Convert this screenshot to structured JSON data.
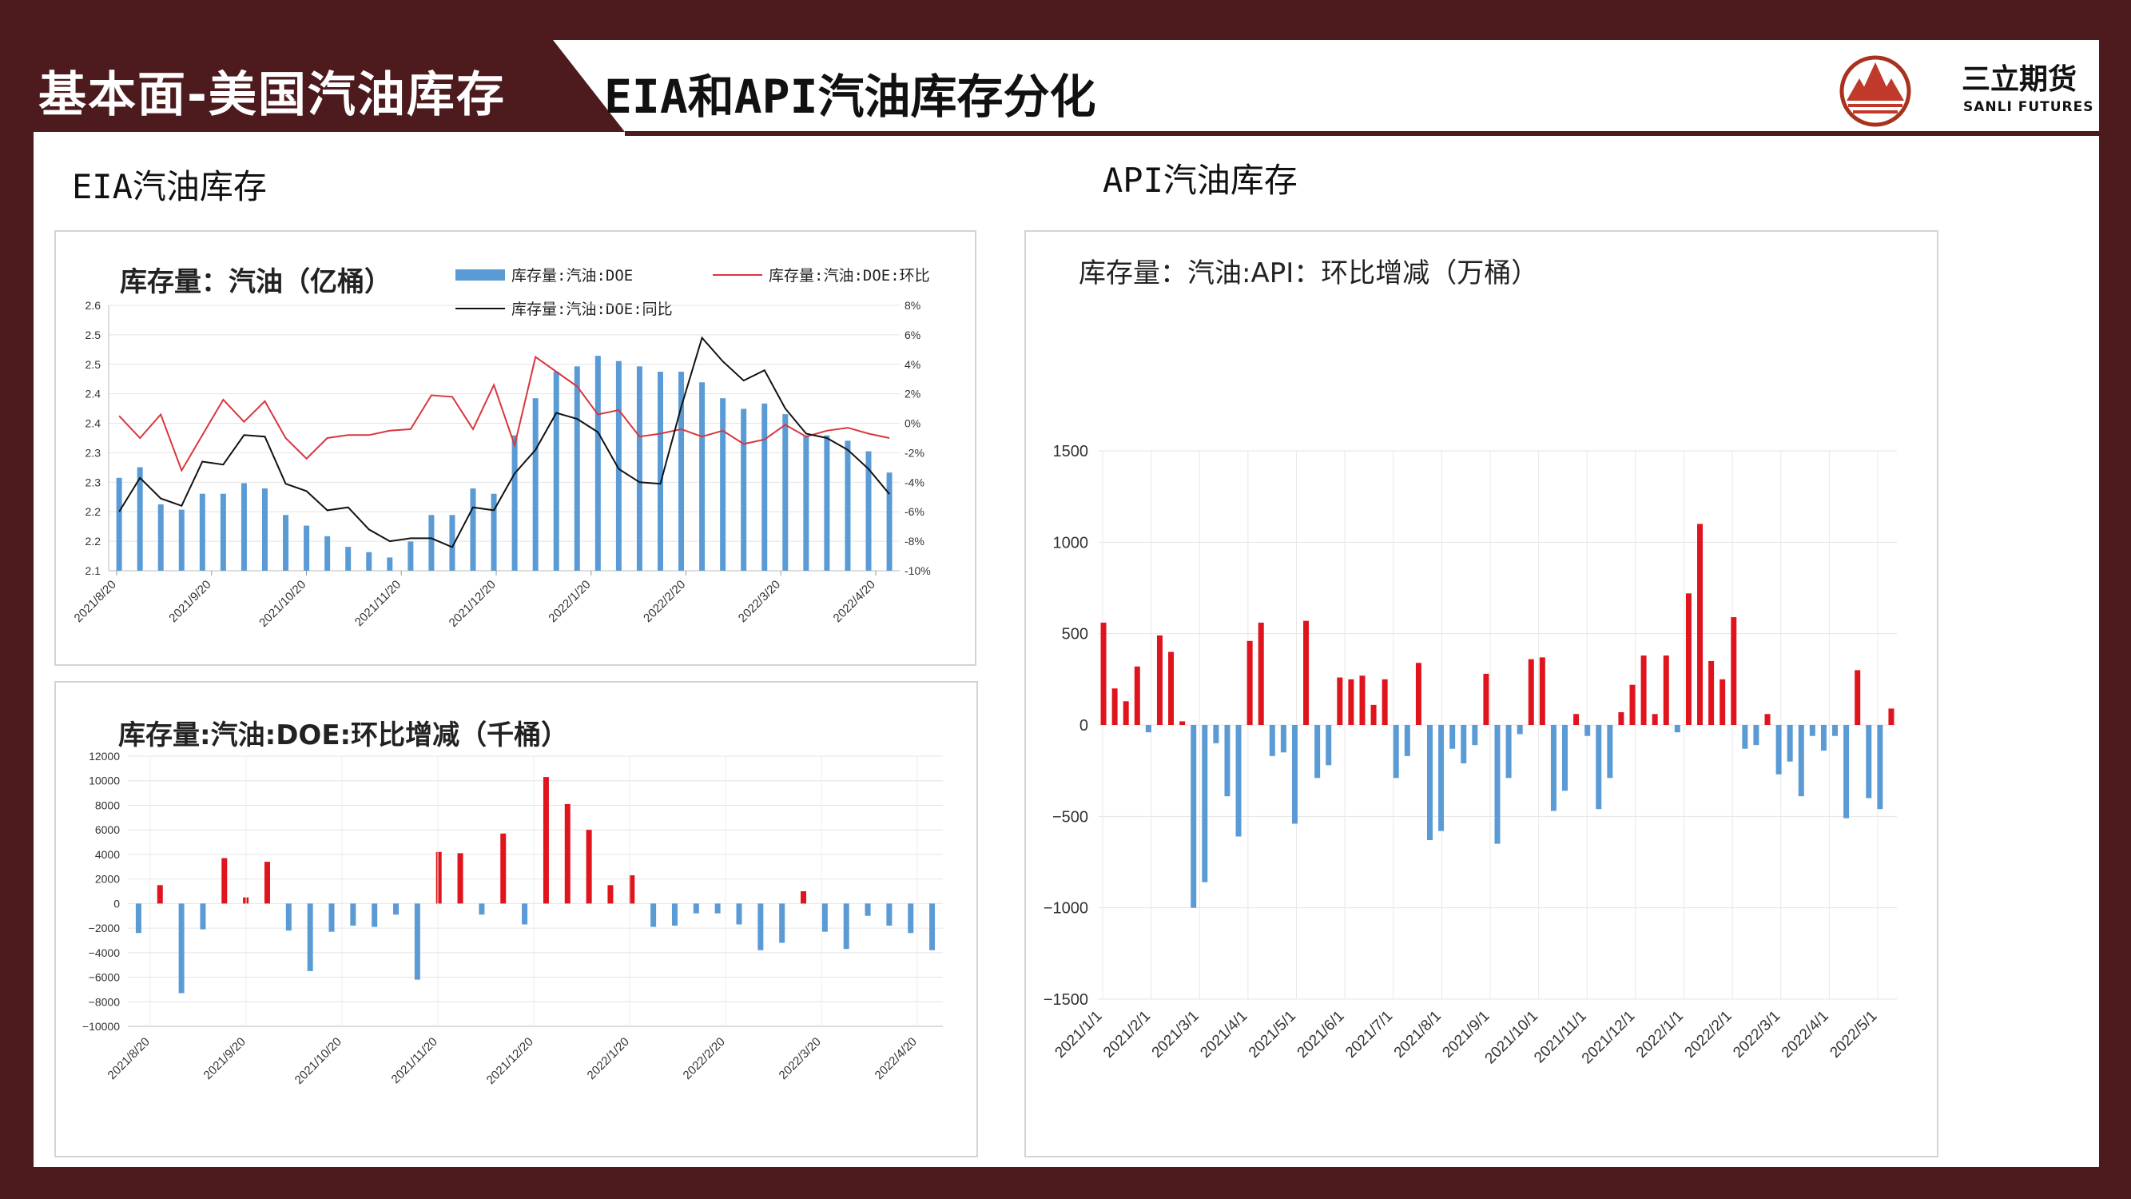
{
  "header": {
    "section": "基本面-美国汽油库存",
    "title": "EIA和API汽油库存分化",
    "logo_cn": "三立期货",
    "logo_en": "SANLI FUTURES"
  },
  "sections": {
    "eia_title": "EIA汽油库存",
    "api_title": "API汽油库存"
  },
  "colors": {
    "brand": "#4d1a1d",
    "bar_blue": "#5b9bd5",
    "bar_red": "#e0141c",
    "line_red": "#d9363e",
    "line_black": "#111111"
  },
  "chart_data": [
    {
      "id": "eia_stock",
      "type": "bar",
      "title": "库存量：汽油（亿桶）",
      "x_ticks": [
        "2021/8/20",
        "2021/9/20",
        "2021/10/20",
        "2021/11/20",
        "2021/12/20",
        "2022/1/20",
        "2022/2/20",
        "2022/3/20",
        "2022/4/20"
      ],
      "y_ticks": [
        "2.1",
        "2.2",
        "2.2",
        "2.3",
        "2.3",
        "2.4",
        "2.4",
        "2.5",
        "2.5",
        "2.6"
      ],
      "y2_ticks": [
        "-10%",
        "-8%",
        "-6%",
        "-4%",
        "-2%",
        "0%",
        "2%",
        "4%",
        "6%",
        "8%"
      ],
      "ylim": [
        2.1,
        2.6
      ],
      "y2lim": [
        -10,
        8
      ],
      "series": [
        {
          "name": "库存量:汽油:DOE",
          "kind": "bar",
          "values": [
            2.275,
            2.295,
            2.225,
            2.215,
            2.245,
            2.245,
            2.265,
            2.255,
            2.205,
            2.185,
            2.165,
            2.145,
            2.135,
            2.125,
            2.155,
            2.205,
            2.205,
            2.255,
            2.245,
            2.355,
            2.425,
            2.475,
            2.485,
            2.505,
            2.495,
            2.485,
            2.475,
            2.475,
            2.455,
            2.425,
            2.405,
            2.415,
            2.395,
            2.355,
            2.355,
            2.345,
            2.325,
            2.285
          ]
        },
        {
          "name": "库存量:汽油:DOE:环比",
          "kind": "line",
          "values": [
            0.5,
            -1.0,
            0.6,
            -3.2,
            -0.8,
            1.6,
            0.1,
            1.5,
            -1.0,
            -2.4,
            -1.0,
            -0.8,
            -0.8,
            -0.5,
            -0.4,
            1.9,
            1.8,
            -0.4,
            2.6,
            -1.5,
            4.5,
            3.5,
            2.5,
            0.6,
            0.9,
            -0.9,
            -0.7,
            -0.4,
            -0.9,
            -0.5,
            -1.4,
            -1.1,
            -0.1,
            -0.9,
            -0.5,
            -0.3,
            -0.7,
            -1.0
          ]
        },
        {
          "name": "库存量:汽油:DOE:同比",
          "kind": "line",
          "values": [
            -6.0,
            -3.7,
            -5.1,
            -5.6,
            -2.6,
            -2.8,
            -0.8,
            -0.9,
            -4.1,
            -4.6,
            -5.9,
            -5.7,
            -7.2,
            -8.0,
            -7.8,
            -7.8,
            -8.4,
            -5.7,
            -5.9,
            -3.4,
            -1.8,
            0.7,
            0.3,
            -0.6,
            -3.1,
            -4.0,
            -4.1,
            1.1,
            5.8,
            4.2,
            2.9,
            3.6,
            1.0,
            -0.7,
            -1.0,
            -1.8,
            -3.1,
            -4.8
          ]
        }
      ]
    },
    {
      "id": "eia_change",
      "type": "bar",
      "title": "库存量:汽油:DOE:环比增减（千桶）",
      "x_ticks": [
        "2021/8/20",
        "2021/9/20",
        "2021/10/20",
        "2021/11/20",
        "2021/12/20",
        "2022/1/20",
        "2022/2/20",
        "2022/3/20",
        "2022/4/20"
      ],
      "y_ticks": [
        "−10000",
        "−8000",
        "−6000",
        "−4000",
        "−2000",
        "0",
        "2000",
        "4000",
        "6000",
        "8000",
        "10000",
        "12000"
      ],
      "ylim": [
        -10000,
        12000
      ],
      "values": [
        -2400,
        1500,
        -7300,
        -2100,
        3700,
        500,
        3400,
        -2200,
        -5500,
        -2300,
        -1800,
        -1900,
        -900,
        -6200,
        4200,
        4100,
        -900,
        5700,
        -1700,
        10300,
        8100,
        6000,
        1500,
        2300,
        -1900,
        -1800,
        -800,
        -800,
        -1700,
        -3800,
        -3200,
        1000,
        -2300,
        -3700,
        -1000,
        -1800,
        -2400,
        -3800
      ]
    },
    {
      "id": "api_change",
      "type": "bar",
      "title": "库存量：汽油:API：环比增减（万桶）",
      "x_ticks": [
        "2021/1/1",
        "2021/2/1",
        "2021/3/1",
        "2021/4/1",
        "2021/5/1",
        "2021/6/1",
        "2021/7/1",
        "2021/8/1",
        "2021/9/1",
        "2021/10/1",
        "2021/11/1",
        "2021/12/1",
        "2022/1/1",
        "2022/2/1",
        "2022/3/1",
        "2022/4/1",
        "2022/5/1"
      ],
      "y_ticks": [
        "−1500",
        "−1000",
        "−500",
        "0",
        "500",
        "1000",
        "1500"
      ],
      "ylim": [
        -1500,
        1500
      ],
      "values": [
        560,
        200,
        130,
        320,
        -40,
        490,
        400,
        20,
        -1000,
        -860,
        -100,
        -390,
        -610,
        460,
        560,
        -170,
        -150,
        -540,
        570,
        -290,
        -220,
        260,
        250,
        270,
        110,
        250,
        -290,
        -170,
        340,
        -630,
        -580,
        -130,
        -210,
        -110,
        280,
        -650,
        -290,
        -50,
        360,
        370,
        -470,
        -360,
        60,
        -60,
        -460,
        -290,
        70,
        220,
        380,
        60,
        380,
        -40,
        720,
        1100,
        350,
        250,
        590,
        -130,
        -110,
        60,
        -270,
        -200,
        -390,
        -60,
        -140,
        -60,
        -510,
        300,
        -400,
        -460,
        90
      ]
    }
  ]
}
